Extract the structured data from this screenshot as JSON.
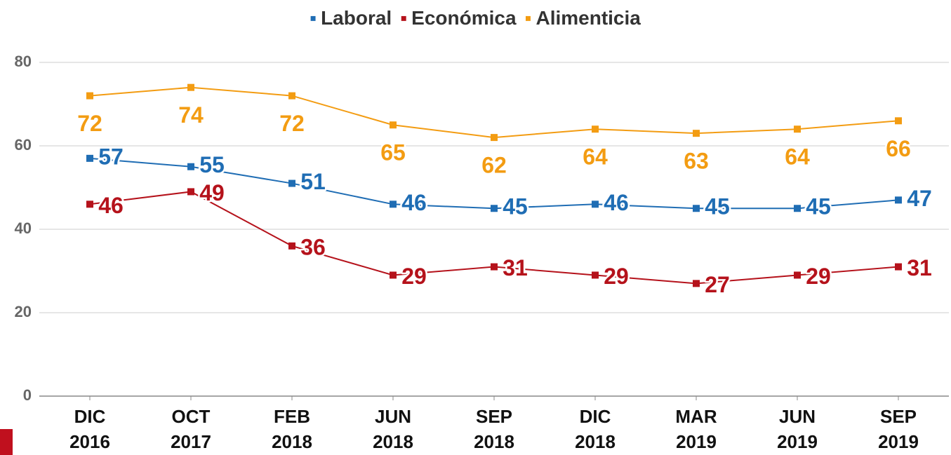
{
  "chart_data": {
    "type": "line",
    "categories": [
      "DIC 2016",
      "OCT 2017",
      "FEB 2018",
      "JUN 2018",
      "SEP 2018",
      "DIC 2018",
      "MAR 2019",
      "JUN 2019",
      "SEP 2019"
    ],
    "series": [
      {
        "name": "Laboral",
        "color": "#1f6db4",
        "values": [
          57,
          55,
          51,
          46,
          45,
          46,
          45,
          45,
          47
        ]
      },
      {
        "name": "Económica",
        "color": "#b5121b",
        "values": [
          46,
          49,
          36,
          29,
          31,
          29,
          27,
          29,
          31
        ]
      },
      {
        "name": "Alimenticia",
        "color": "#f39c12",
        "values": [
          72,
          74,
          72,
          65,
          62,
          64,
          63,
          64,
          66
        ]
      }
    ],
    "ylim": [
      0,
      80
    ],
    "yticks": [
      0,
      20,
      40,
      60,
      80
    ],
    "grid": true,
    "legend": "top"
  }
}
